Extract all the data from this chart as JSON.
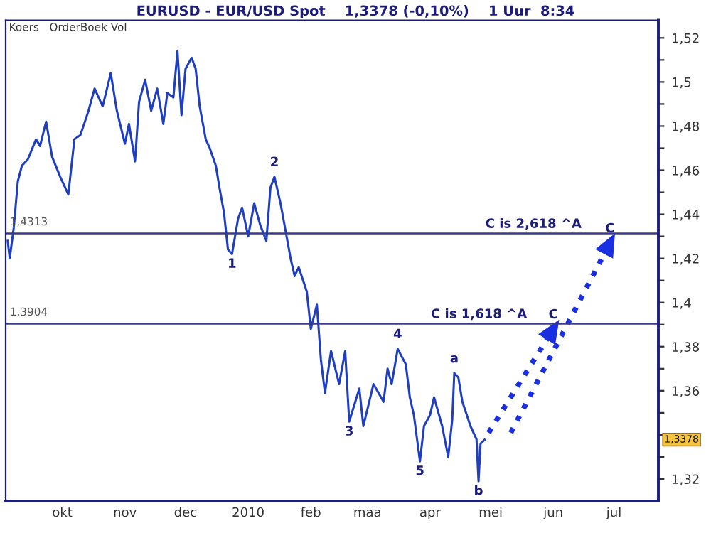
{
  "chart_data": {
    "type": "line",
    "title": "EURUSD - EUR/USD Spot    1,3378 (-0,10%)    1 Uur  8:34",
    "series": [
      {
        "color": "#1f3fbf",
        "x": [
          "2009-09-04",
          "2009-09-05",
          "2009-09-07",
          "2009-09-09",
          "2009-09-11",
          "2009-09-14",
          "2009-09-18",
          "2009-09-20",
          "2009-09-23",
          "2009-09-26",
          "2009-09-30",
          "2009-10-04",
          "2009-10-07",
          "2009-10-10",
          "2009-10-14",
          "2009-10-17",
          "2009-10-21",
          "2009-10-25",
          "2009-10-28",
          "2009-11-01",
          "2009-11-03",
          "2009-11-06",
          "2009-11-08",
          "2009-11-11",
          "2009-11-14",
          "2009-11-17",
          "2009-11-20",
          "2009-11-22",
          "2009-11-25",
          "2009-11-27",
          "2009-11-29",
          "2009-12-01",
          "2009-12-04",
          "2009-12-06",
          "2009-12-08",
          "2009-12-11",
          "2009-12-13",
          "2009-12-16",
          "2009-12-18",
          "2009-12-20",
          "2009-12-22",
          "2009-12-24",
          "2009-12-27",
          "2009-12-29",
          "2010-01-01",
          "2010-01-04",
          "2010-01-07",
          "2010-01-10",
          "2010-01-12",
          "2010-01-14",
          "2010-01-17",
          "2010-01-19",
          "2010-01-22",
          "2010-01-24",
          "2010-01-26",
          "2010-01-30",
          "2010-02-01",
          "2010-02-04",
          "2010-02-06",
          "2010-02-08",
          "2010-02-11",
          "2010-02-15",
          "2010-02-18",
          "2010-02-20",
          "2010-02-25",
          "2010-02-27",
          "2010-03-04",
          "2010-03-09",
          "2010-03-11",
          "2010-03-13",
          "2010-03-16",
          "2010-03-20",
          "2010-03-22",
          "2010-03-24",
          "2010-03-27",
          "2010-03-29",
          "2010-04-01",
          "2010-04-03",
          "2010-04-07",
          "2010-04-10",
          "2010-04-12",
          "2010-04-13",
          "2010-04-15",
          "2010-04-17",
          "2010-04-21",
          "2010-04-24",
          "2010-04-25",
          "2010-04-26",
          "2010-04-28"
        ],
        "values": [
          1.428,
          1.42,
          1.434,
          1.455,
          1.462,
          1.465,
          1.474,
          1.471,
          1.482,
          1.466,
          1.457,
          1.449,
          1.474,
          1.476,
          1.487,
          1.497,
          1.489,
          1.504,
          1.487,
          1.472,
          1.481,
          1.464,
          1.491,
          1.501,
          1.487,
          1.497,
          1.481,
          1.495,
          1.493,
          1.514,
          1.485,
          1.506,
          1.511,
          1.506,
          1.489,
          1.474,
          1.47,
          1.462,
          1.451,
          1.441,
          1.424,
          1.422,
          1.438,
          1.443,
          1.43,
          1.445,
          1.435,
          1.428,
          1.452,
          1.457,
          1.445,
          1.435,
          1.42,
          1.412,
          1.416,
          1.405,
          1.388,
          1.399,
          1.374,
          1.359,
          1.378,
          1.363,
          1.378,
          1.346,
          1.361,
          1.344,
          1.363,
          1.355,
          1.37,
          1.363,
          1.379,
          1.372,
          1.357,
          1.349,
          1.328,
          1.344,
          1.349,
          1.357,
          1.344,
          1.33,
          1.347,
          1.368,
          1.366,
          1.355,
          1.344,
          1.338,
          1.319,
          1.336,
          1.3378
        ]
      },
      {
        "color": "#1a2fe0",
        "line_style": "dotted",
        "x": [
          "2010-04-30",
          "2010-06-01"
        ],
        "values": [
          1.341,
          1.388
        ]
      },
      {
        "color": "#1a2fe0",
        "line_style": "dotted",
        "x": [
          "2010-05-11",
          "2010-06-29"
        ],
        "values": [
          1.341,
          1.427
        ]
      }
    ],
    "xlim": [
      "2009-09-03",
      "2010-07-23"
    ],
    "xticks": [
      {
        "value": "2009-10-01",
        "label": "okt"
      },
      {
        "value": "2009-11-01",
        "label": "nov"
      },
      {
        "value": "2009-12-01",
        "label": "dec"
      },
      {
        "value": "2010-01-01",
        "label": "2010"
      },
      {
        "value": "2010-02-01",
        "label": "feb"
      },
      {
        "value": "2010-03-01",
        "label": "maa"
      },
      {
        "value": "2010-04-01",
        "label": "apr"
      },
      {
        "value": "2010-05-01",
        "label": "mei"
      },
      {
        "value": "2010-06-01",
        "label": "jun"
      },
      {
        "value": "2010-07-01",
        "label": "jul"
      }
    ],
    "ylim": [
      1.31,
      1.528
    ],
    "yticks": [
      {
        "value": 1.32,
        "label": "1,32"
      },
      {
        "value": 1.33,
        "label": null
      },
      {
        "value": 1.34,
        "label": null
      },
      {
        "value": 1.35,
        "label": null
      },
      {
        "value": 1.36,
        "label": "1,36"
      },
      {
        "value": 1.37,
        "label": null
      },
      {
        "value": 1.38,
        "label": "1,38"
      },
      {
        "value": 1.39,
        "label": null
      },
      {
        "value": 1.4,
        "label": "1,4"
      },
      {
        "value": 1.41,
        "label": null
      },
      {
        "value": 1.42,
        "label": "1,42"
      },
      {
        "value": 1.43,
        "label": null
      },
      {
        "value": 1.44,
        "label": "1,44"
      },
      {
        "value": 1.45,
        "label": null
      },
      {
        "value": 1.46,
        "label": "1,46"
      },
      {
        "value": 1.47,
        "label": null
      },
      {
        "value": 1.48,
        "label": "1,48"
      },
      {
        "value": 1.49,
        "label": null
      },
      {
        "value": 1.5,
        "label": "1,5"
      },
      {
        "value": 1.51,
        "label": null
      },
      {
        "value": 1.52,
        "label": "1,52"
      }
    ],
    "ref_lines": [
      {
        "axis": "y",
        "value": 1.4313,
        "label": "1,4313",
        "color": "#3a3a8c"
      },
      {
        "axis": "y",
        "value": 1.3904,
        "label": "1,3904",
        "color": "#3a3a8c"
      }
    ],
    "annotations": [
      "Koers   OrderBoek Vol",
      {
        "text": "1",
        "x": "2009-12-24",
        "y": 1.422
      },
      {
        "text": "2",
        "x": "2010-01-14",
        "y": 1.457
      },
      {
        "text": "3",
        "x": "2010-02-20",
        "y": 1.346
      },
      {
        "text": "4",
        "x": "2010-03-16",
        "y": 1.379
      },
      {
        "text": "5",
        "x": "2010-03-27",
        "y": 1.328
      },
      {
        "text": "a",
        "x": "2010-04-13",
        "y": 1.368
      },
      {
        "text": "b",
        "x": "2010-04-25",
        "y": 1.319
      },
      {
        "text": "C is 1,618 ^A",
        "x": "2010-05-19",
        "y": 1.3904
      },
      {
        "text": "C",
        "x": "2010-06-01",
        "y": 1.388
      },
      {
        "text": "C is 2,618 ^A",
        "x": "2010-06-15",
        "y": 1.4313
      },
      {
        "text": "C",
        "x": "2010-06-29",
        "y": 1.427
      },
      "1,3378"
    ],
    "grid": false,
    "legend": false
  }
}
